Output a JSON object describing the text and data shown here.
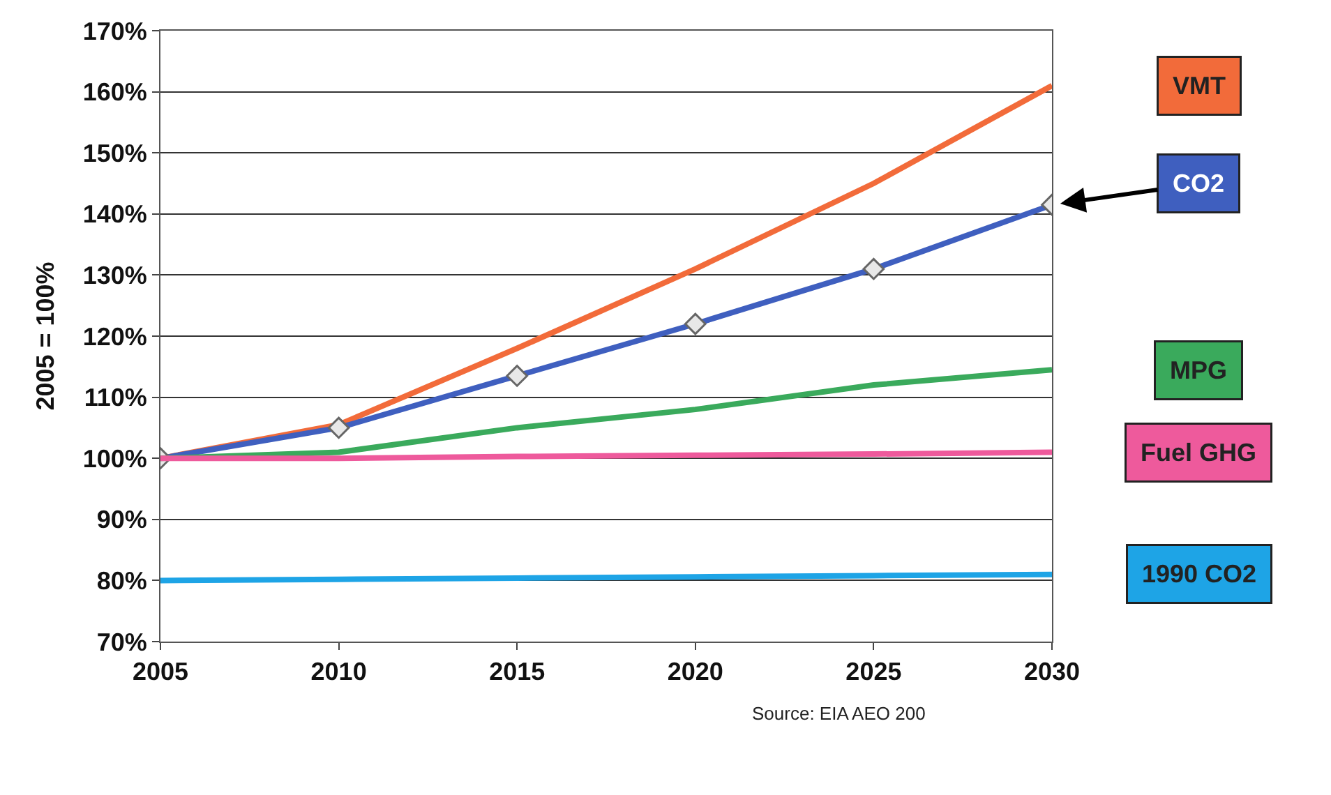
{
  "chart_data": {
    "type": "line",
    "ylabel": "2005 = 100%",
    "x": [
      2005,
      2010,
      2015,
      2020,
      2025,
      2030
    ],
    "xlim": [
      2005,
      2030
    ],
    "xticks": [
      2005,
      2010,
      2015,
      2020,
      2025,
      2030
    ],
    "ylim": [
      70,
      170
    ],
    "yticks": [
      {
        "value": 70,
        "label": "70%"
      },
      {
        "value": 80,
        "label": "80%"
      },
      {
        "value": 90,
        "label": "90%"
      },
      {
        "value": 100,
        "label": "100%"
      },
      {
        "value": 110,
        "label": "110%"
      },
      {
        "value": 120,
        "label": "120%"
      },
      {
        "value": 130,
        "label": "130%"
      },
      {
        "value": 140,
        "label": "140%"
      },
      {
        "value": 150,
        "label": "150%"
      },
      {
        "value": 160,
        "label": "160%"
      },
      {
        "value": 170,
        "label": "170%"
      }
    ],
    "grid": "y",
    "legend": false,
    "series": [
      {
        "name": "VMT",
        "color": "#f26b3a",
        "values": [
          100,
          105.5,
          118,
          131,
          145,
          161
        ],
        "marker": "none"
      },
      {
        "name": "CO2",
        "color": "#3f5fbf",
        "values": [
          100,
          105,
          113.5,
          122,
          131,
          141.5
        ],
        "marker": "diamond"
      },
      {
        "name": "MPG",
        "color": "#3aaa5c",
        "values": [
          100,
          101,
          105,
          108,
          112,
          114.5
        ],
        "marker": "none"
      },
      {
        "name": "Fuel GHG",
        "color": "#ee5a9c",
        "values": [
          100,
          100,
          100.3,
          100.5,
          100.7,
          101
        ],
        "marker": "none"
      },
      {
        "name": "1990 CO2",
        "color": "#1ea4e6",
        "values": [
          80,
          80.2,
          80.4,
          80.6,
          80.8,
          81
        ],
        "marker": "none"
      }
    ],
    "annotations": [
      "Source: EIA AEO 200"
    ]
  }
}
